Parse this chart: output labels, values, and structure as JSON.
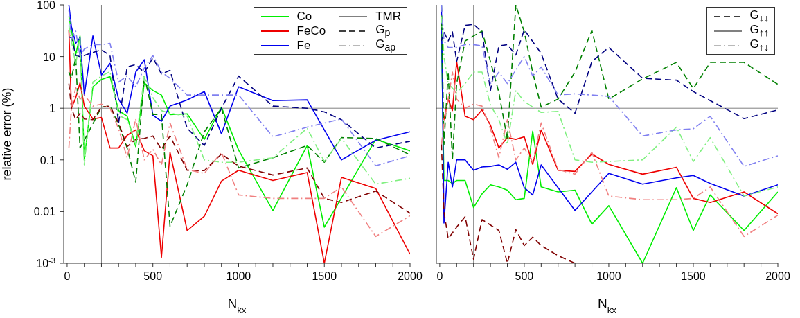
{
  "chart_data": [
    {
      "type": "line",
      "xlabel": "N$_{kx}$",
      "ylabel": "relative error  (%)",
      "log": "y",
      "grid": false,
      "legend": "top right",
      "marker": "none",
      "xlim": [
        -20,
        2000
      ],
      "ylim": [
        0.001,
        100
      ],
      "xticks": [
        0,
        {
          "value": 100,
          "label": null
        },
        {
          "value": 200,
          "label": null
        },
        {
          "value": 300,
          "label": null
        },
        {
          "value": 400,
          "label": null
        },
        500,
        {
          "value": 600,
          "label": null
        },
        {
          "value": 700,
          "label": null
        },
        {
          "value": 800,
          "label": null
        },
        {
          "value": 900,
          "label": null
        },
        1000,
        {
          "value": 1100,
          "label": null
        },
        {
          "value": 1200,
          "label": null
        },
        {
          "value": 1300,
          "label": null
        },
        {
          "value": 1400,
          "label": null
        },
        1500,
        {
          "value": 1600,
          "label": null
        },
        {
          "value": 1700,
          "label": null
        },
        {
          "value": 1800,
          "label": null
        },
        {
          "value": 1900,
          "label": null
        },
        2000
      ],
      "yticks": [
        {
          "value": 0.001,
          "label": "10$^{-3}$"
        },
        0.01,
        0.1,
        1,
        10,
        100
      ],
      "ref_lines": [
        {
          "axis": "y",
          "value": 1,
          "color": "#808080"
        },
        {
          "axis": "x",
          "value": 200,
          "color": "#808080"
        }
      ],
      "series": [
        {
          "name": "Co",
          "color": "#00ee00",
          "line_style": "solid",
          "x": [
            10,
            25,
            50,
            75,
            100,
            150,
            200,
            250,
            300,
            350,
            400,
            450,
            500,
            550,
            600,
            700,
            800,
            900,
            1000,
            1200,
            1400,
            1500,
            1800,
            2000
          ],
          "values": [
            60,
            32,
            11,
            25,
            0.1,
            2.6,
            3.6,
            4.1,
            0.9,
            0.7,
            0.18,
            3.1,
            2.2,
            1.8,
            0.75,
            0.78,
            0.25,
            1.05,
            0.155,
            0.0105,
            0.19,
            0.005,
            0.25,
            0.15
          ]
        },
        {
          "name": "FeCo",
          "color": "#ee0000",
          "line_style": "solid",
          "x": [
            10,
            25,
            50,
            75,
            100,
            150,
            200,
            250,
            300,
            350,
            400,
            450,
            500,
            550,
            600,
            700,
            800,
            900,
            1000,
            1200,
            1400,
            1500,
            1600,
            1800,
            2000
          ],
          "values": [
            33,
            1,
            1.6,
            3.1,
            1.1,
            0.62,
            0.66,
            0.17,
            0.17,
            0.3,
            0.38,
            0.15,
            0.12,
            0.0013,
            0.14,
            0.0043,
            0.0081,
            0.039,
            0.063,
            0.04,
            0.057,
            0.001,
            0.046,
            0.028,
            0.0015
          ]
        },
        {
          "name": "Fe",
          "color": "#0000ee",
          "line_style": "solid",
          "x": [
            10,
            25,
            50,
            75,
            100,
            150,
            200,
            250,
            300,
            350,
            400,
            450,
            500,
            550,
            600,
            700,
            800,
            900,
            1000,
            1200,
            1400,
            1600,
            1800,
            2000
          ],
          "values": [
            100,
            38,
            18,
            23,
            1.8,
            25,
            4.4,
            7.4,
            1.5,
            0.8,
            5,
            8.7,
            0.73,
            0.56,
            1.1,
            1.45,
            2.1,
            0.32,
            2.6,
            1.4,
            1.45,
            0.1,
            0.24,
            0.35
          ]
        },
        {
          "color": "#008000",
          "line_style": "dashed",
          "x": [
            10,
            25,
            50,
            75,
            100,
            150,
            200,
            250,
            300,
            350,
            400,
            450,
            500,
            550,
            600,
            700,
            800,
            900,
            1000,
            1200,
            1400,
            1500,
            1600,
            1800,
            2000
          ],
          "values": [
            5,
            3.8,
            9.5,
            0.17,
            0.24,
            0.5,
            1.05,
            1.1,
            0.48,
            0.17,
            0.037,
            4.2,
            0.76,
            0.76,
            0.0052,
            0.033,
            0.35,
            1,
            0.07,
            0.11,
            0.19,
            0.09,
            0.27,
            0.26,
            0.125
          ]
        },
        {
          "color": "#800000",
          "line_style": "dashed",
          "x": [
            10,
            25,
            50,
            75,
            100,
            150,
            200,
            250,
            300,
            350,
            400,
            450,
            500,
            550,
            600,
            700,
            800,
            900,
            1000,
            1200,
            1400,
            1500,
            1600,
            1800,
            2000
          ],
          "values": [
            3,
            1,
            0.6,
            0.8,
            0.62,
            0.6,
            1.05,
            1.1,
            0.52,
            0.18,
            0.25,
            0.26,
            0.29,
            0.16,
            0.29,
            0.063,
            0.062,
            0.13,
            0.076,
            0.051,
            0.07,
            0.018,
            0.015,
            0.025,
            0.0093
          ]
        },
        {
          "color": "#000080",
          "line_style": "dashed",
          "x": [
            10,
            25,
            50,
            75,
            100,
            150,
            200,
            250,
            300,
            350,
            400,
            450,
            500,
            550,
            600,
            700,
            800,
            900,
            1000,
            1200,
            1400,
            1500,
            1600,
            1800,
            2000
          ],
          "values": [
            24,
            23,
            10.5,
            10,
            10.5,
            12,
            13.5,
            10.5,
            0.52,
            6.3,
            7,
            4.9,
            9.5,
            4.6,
            5.4,
            0.41,
            0.19,
            1,
            4.2,
            1.1,
            1,
            0.85,
            0.6,
            0.17,
            0.23
          ]
        },
        {
          "color": "#80f080",
          "line_style": "dashdot",
          "x": [
            10,
            25,
            50,
            75,
            100,
            150,
            200,
            250,
            300,
            350,
            400,
            450,
            500,
            550,
            600,
            700,
            800,
            900,
            1000,
            1200,
            1400,
            1500,
            1600,
            1800,
            2000
          ],
          "values": [
            40,
            20,
            7,
            24,
            0.08,
            3.2,
            4.2,
            5.1,
            0.73,
            0.6,
            0.2,
            4.2,
            1.6,
            0.9,
            0.8,
            0.7,
            0.1,
            0.09,
            0.09,
            0.11,
            0.41,
            0.093,
            0.26,
            0.034,
            0.044
          ]
        },
        {
          "color": "#f08080",
          "line_style": "dashdot",
          "x": [
            10,
            25,
            50,
            75,
            100,
            150,
            200,
            250,
            300,
            350,
            400,
            450,
            500,
            550,
            600,
            700,
            800,
            900,
            1000,
            1200,
            1400,
            1500,
            1600,
            1800,
            2000
          ],
          "values": [
            0.17,
            1,
            2.5,
            1.5,
            1.8,
            1.1,
            1.2,
            1,
            0.4,
            0.11,
            0.62,
            0.1,
            0.16,
            0.08,
            0.52,
            0.065,
            0.055,
            0.14,
            0.021,
            0.018,
            0.018,
            0.018,
            0.03,
            0.0033,
            0.0083
          ]
        },
        {
          "color": "#8080f0",
          "line_style": "dashdot",
          "x": [
            10,
            25,
            50,
            75,
            100,
            150,
            200,
            250,
            300,
            350,
            400,
            450,
            500,
            550,
            600,
            700,
            800,
            900,
            1000,
            1200,
            1400,
            1600,
            1800,
            2000
          ],
          "values": [
            80,
            22,
            31,
            10,
            14,
            17,
            17,
            18,
            3.2,
            4.2,
            2.6,
            6,
            10.5,
            5,
            3.8,
            1.8,
            1.8,
            1.8,
            1.8,
            0.28,
            0.43,
            0.62,
            0.077,
            0.12
          ]
        },
        {
          "name": "TMR",
          "color": "#808080",
          "line_style": "solid"
        },
        {
          "name": "G$_{p}$",
          "color": "#404040",
          "line_style": "dashed"
        },
        {
          "name": "G$_{ap}$",
          "color": "#b8b8b8",
          "line_style": "dashdot"
        }
      ]
    },
    {
      "type": "line",
      "xlabel": "N$_{kx}$",
      "log": "y",
      "grid": false,
      "legend": "top right",
      "marker": "none",
      "tick_labels": "x",
      "xlim": [
        -20,
        2000
      ],
      "ylim": [
        0.001,
        100
      ],
      "xticks": [
        0,
        {
          "value": 100,
          "label": null
        },
        {
          "value": 200,
          "label": null
        },
        {
          "value": 300,
          "label": null
        },
        {
          "value": 400,
          "label": null
        },
        500,
        {
          "value": 600,
          "label": null
        },
        {
          "value": 700,
          "label": null
        },
        {
          "value": 800,
          "label": null
        },
        {
          "value": 900,
          "label": null
        },
        1000,
        {
          "value": 1100,
          "label": null
        },
        {
          "value": 1200,
          "label": null
        },
        {
          "value": 1300,
          "label": null
        },
        {
          "value": 1400,
          "label": null
        },
        1500,
        {
          "value": 1600,
          "label": null
        },
        {
          "value": 1700,
          "label": null
        },
        {
          "value": 1800,
          "label": null
        },
        {
          "value": 1900,
          "label": null
        },
        2000
      ],
      "yticks": [
        0.001,
        0.01,
        0.1,
        1,
        10,
        100
      ],
      "ref_lines": [
        {
          "axis": "y",
          "value": 1,
          "color": "#808080"
        },
        {
          "axis": "x",
          "value": 200,
          "color": "#808080"
        }
      ],
      "series": [
        {
          "color": "#00ee00",
          "line_style": "solid",
          "x": [
            10,
            25,
            50,
            75,
            100,
            150,
            200,
            250,
            300,
            350,
            400,
            450,
            500,
            550,
            600,
            700,
            800,
            900,
            1000,
            1200,
            1400,
            1500,
            1600,
            1800,
            2000
          ],
          "values": [
            30,
            0.04,
            0.04,
            0.035,
            0.04,
            0.04,
            0.012,
            0.022,
            0.033,
            0.03,
            0.026,
            0.017,
            0.018,
            0.36,
            0.03,
            0.024,
            0.026,
            0.0057,
            0.013,
            0.001,
            0.029,
            0.0043,
            0.021,
            0.0043,
            0.024
          ]
        },
        {
          "color": "#ee0000",
          "line_style": "solid",
          "x": [
            25,
            50,
            75,
            100,
            150,
            200,
            250,
            300,
            350,
            400,
            450,
            500,
            550,
            600,
            700,
            800,
            900,
            1000,
            1200,
            1400,
            1500,
            1600,
            1800,
            2000
          ],
          "values": [
            0.6,
            1.5,
            0.9,
            8,
            0.7,
            0.6,
            0.93,
            0.47,
            0.17,
            0.27,
            0.25,
            0.28,
            0.082,
            0.38,
            0.063,
            0.06,
            0.13,
            0.082,
            0.053,
            0.072,
            0.018,
            0.015,
            0.024,
            0.0091
          ]
        },
        {
          "color": "#0000ee",
          "line_style": "solid",
          "x": [
            10,
            25,
            50,
            75,
            100,
            150,
            200,
            250,
            300,
            350,
            400,
            450,
            500,
            550,
            600,
            800,
            1000,
            1200,
            1400,
            1500,
            1600,
            1800,
            2000
          ],
          "values": [
            100,
            0.006,
            0.09,
            0.03,
            0.1,
            0.1,
            0.063,
            0.073,
            0.075,
            0.08,
            0.066,
            0.09,
            0.029,
            0.021,
            0.08,
            0.0105,
            0.055,
            0.034,
            0.045,
            0.05,
            0.035,
            0.02,
            0.033
          ]
        },
        {
          "color": "#008000",
          "line_style": "dashed",
          "x": [
            10,
            25,
            50,
            75,
            100,
            150,
            200,
            250,
            300,
            350,
            400,
            450,
            500,
            550,
            600,
            700,
            800,
            900,
            1000,
            1200,
            1400,
            1500,
            1600,
            1800,
            2000
          ],
          "values": [
            100,
            0.2,
            5,
            0.1,
            3,
            20,
            25,
            31,
            8,
            2,
            0.25,
            100,
            30,
            5,
            1.05,
            1.5,
            5,
            32,
            1.5,
            3.7,
            7.7,
            2.4,
            7.7,
            7.7,
            2.9
          ]
        },
        {
          "color": "#800000",
          "line_style": "dashed",
          "x": [
            10,
            25,
            50,
            100,
            150,
            200,
            250,
            300,
            350,
            400,
            450,
            500,
            550,
            600,
            700,
            800,
            900,
            1000
          ],
          "values": [
            0.2,
            0.01,
            0.003,
            0.005,
            0.008,
            0.0012,
            0.007,
            0.0055,
            0.0043,
            0.001,
            0.0045,
            0.0022,
            0.0032,
            0.0022,
            0.0014,
            0.001,
            0.001,
            0.001
          ]
        },
        {
          "color": "#000080",
          "line_style": "dashed",
          "x": [
            10,
            25,
            50,
            75,
            100,
            150,
            200,
            250,
            300,
            350,
            400,
            450,
            500,
            600,
            700,
            800,
            900,
            1000,
            1200,
            1400,
            1500,
            1800,
            2000
          ],
          "values": [
            20,
            30,
            20,
            30,
            8,
            40,
            42,
            30,
            2.2,
            16,
            17,
            10.7,
            33,
            11.5,
            1.5,
            0.8,
            8,
            15,
            3.8,
            3.5,
            2.1,
            0.63,
            0.93
          ]
        },
        {
          "color": "#80f080",
          "line_style": "dashdot",
          "x": [
            10,
            25,
            50,
            100,
            150,
            200,
            250,
            300,
            350,
            400,
            450,
            500,
            600,
            700,
            800,
            900,
            1000,
            1200,
            1400,
            1500,
            1600,
            1800,
            2000
          ],
          "values": [
            60,
            10,
            3,
            2,
            3,
            5,
            5,
            1.15,
            0.6,
            0.2,
            2.2,
            1.35,
            0.83,
            0.87,
            0.1,
            0.09,
            0.093,
            0.1,
            0.43,
            0.093,
            0.27,
            0.02,
            0.03
          ]
        },
        {
          "color": "#f08080",
          "line_style": "dashdot",
          "x": [
            10,
            25,
            50,
            75,
            100,
            150,
            200,
            250,
            300,
            350,
            400,
            450,
            500,
            550,
            600,
            700,
            800,
            900,
            1000,
            1200,
            1400,
            1500,
            1600,
            1800,
            2000
          ],
          "values": [
            0.2,
            0.5,
            1.5,
            5,
            1.5,
            1,
            1.2,
            1.1,
            0.4,
            0.11,
            0.6,
            0.1,
            0.17,
            0.09,
            0.52,
            0.065,
            0.053,
            0.14,
            0.02,
            0.017,
            0.017,
            0.018,
            0.03,
            0.0033,
            0.0085
          ]
        },
        {
          "color": "#8080f0",
          "line_style": "dashdot",
          "x": [
            10,
            25,
            50,
            100,
            150,
            200,
            250,
            300,
            350,
            400,
            500,
            550,
            600,
            700,
            800,
            1000,
            1200,
            1400,
            1500,
            1600,
            1800,
            2000
          ],
          "values": [
            100,
            20,
            15,
            15,
            17,
            17,
            16,
            3,
            5,
            3,
            10,
            4.2,
            6.3,
            1.8,
            1.9,
            1.7,
            0.29,
            0.38,
            0.4,
            0.7,
            0.075,
            0.12
          ]
        },
        {
          "name": "G$_{↓↓}$",
          "color": "#404040",
          "line_style": "dashed"
        },
        {
          "name": "G$_{↑↑}$",
          "color": "#808080",
          "line_style": "solid"
        },
        {
          "name": "G$_{↑↓}$",
          "color": "#b8b8b8",
          "line_style": "dashdot"
        }
      ]
    }
  ]
}
